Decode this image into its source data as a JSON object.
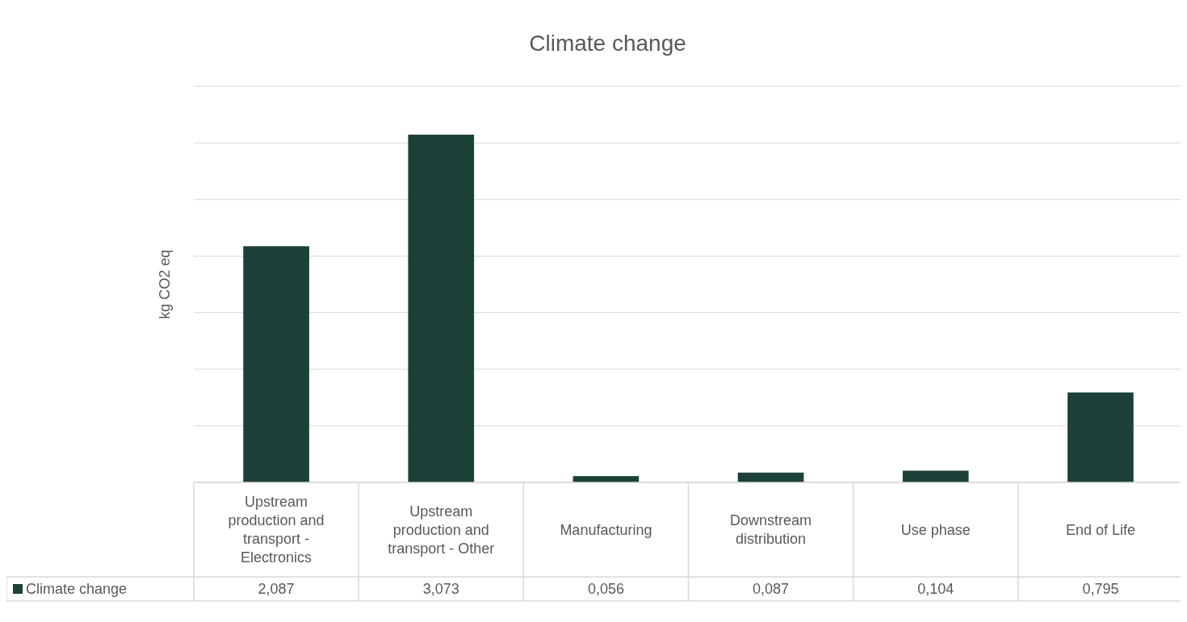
{
  "chart_data": {
    "type": "bar",
    "title": "Climate change",
    "ylabel": "kg CO2 eq",
    "categories": [
      "Upstream production and transport - Electronics",
      "Upstream production and transport - Other",
      "Manufacturing",
      "Downstream distribution",
      "Use phase",
      "End of Life"
    ],
    "series": [
      {
        "name": "Climate change",
        "color": "#1c4139",
        "values": [
          2.087,
          3.073,
          0.056,
          0.087,
          0.104,
          0.795
        ],
        "value_labels": [
          "2,087",
          "3,073",
          "0,056",
          "0,087",
          "0,104",
          "0,795"
        ]
      }
    ],
    "ylim": [
      0,
      3.5
    ],
    "yticks": [
      {
        "value": 0,
        "label": null
      },
      {
        "value": 0.5,
        "label": null
      },
      {
        "value": 1,
        "label": null
      },
      {
        "value": 1.5,
        "label": null
      },
      {
        "value": 2,
        "label": null
      },
      {
        "value": 2.5,
        "label": null
      },
      {
        "value": 3,
        "label": null
      },
      {
        "value": 3.5,
        "label": null
      }
    ],
    "tick_labels": "x",
    "grid": "y",
    "legend": "bottom"
  }
}
